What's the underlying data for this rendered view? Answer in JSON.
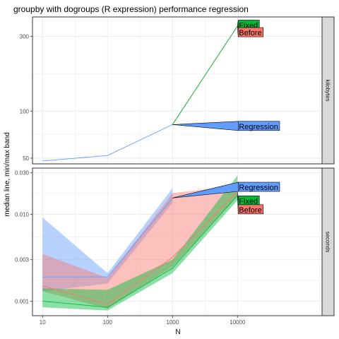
{
  "chart_data": {
    "type": "line",
    "title": "groupby with dogroups (R expression) performance regression",
    "xlabel": "N",
    "ylabel": "median line, min/max band",
    "x_scale": "log10",
    "xlim": [
      7,
      200000
    ],
    "x_ticks": [
      {
        "value": 10,
        "label": "10"
      },
      {
        "value": 100,
        "label": "100"
      },
      {
        "value": 1000,
        "label": "1000"
      },
      {
        "value": 10000,
        "label": "10000"
      }
    ],
    "colors": {
      "before": "#F8766D",
      "fixed": "#00BA38",
      "regression": "#619CFF",
      "panel_grid": "#ebebeb",
      "panel_border": "#333333",
      "strip_fill": "#d9d9d9"
    },
    "legend": "none",
    "panels": [
      {
        "strip": "kilobytes",
        "y_scale": "log10",
        "ylim": [
          46,
          400
        ],
        "y_ticks": [
          {
            "value": 50,
            "label": "50"
          },
          {
            "value": 100,
            "label": "100"
          },
          {
            "value": 300,
            "label": "300"
          }
        ],
        "series": [
          {
            "key": "regression",
            "x": [
              10,
              100,
              1000
            ],
            "median": [
              48,
              52,
              82
            ],
            "min": [
              48,
              52,
              82
            ],
            "max": [
              48,
              52,
              82
            ]
          },
          {
            "key": "before",
            "x": [
              1000,
              10000
            ],
            "median": [
              82,
              350
            ],
            "min": [
              82,
              350
            ],
            "max": [
              82,
              350
            ]
          },
          {
            "key": "fixed",
            "x": [
              1000,
              10000
            ],
            "median": [
              82,
              350
            ],
            "min": [
              82,
              350
            ],
            "max": [
              82,
              350
            ]
          }
        ],
        "annotations": [
          {
            "text": "Fixed",
            "key": "fixed",
            "x": 10000,
            "y": 350,
            "label_x": 10000,
            "label_y": 355
          },
          {
            "text": "Before",
            "key": "before",
            "x": 10000,
            "y": 350,
            "label_x": 10000,
            "label_y": 318
          },
          {
            "text": "Regression",
            "key": "regression",
            "x": 1000,
            "y": 82,
            "label_x": 10000,
            "label_y": 80
          }
        ]
      },
      {
        "strip": "seconds",
        "y_scale": "log10",
        "ylim": [
          0.00068,
          0.034
        ],
        "y_ticks": [
          {
            "value": 0.001,
            "label": "0.001"
          },
          {
            "value": 0.003,
            "label": "0.003"
          },
          {
            "value": 0.01,
            "label": "0.010"
          },
          {
            "value": 0.03,
            "label": "0.030"
          }
        ],
        "series": [
          {
            "key": "regression",
            "x": [
              10,
              100,
              1000
            ],
            "median": [
              0.0019,
              0.0019,
              0.0154
            ],
            "min": [
              0.0013,
              0.0016,
              0.0135
            ],
            "max": [
              0.0092,
              0.0021,
              0.02
            ]
          },
          {
            "key": "before",
            "x": [
              10,
              100,
              1000,
              10000
            ],
            "median": [
              0.0015,
              0.00092,
              0.0032,
              0.018
            ],
            "min": [
              0.0013,
              0.00082,
              0.0025,
              0.016
            ],
            "max": [
              0.0035,
              0.00185,
              0.0175,
              0.0215
            ]
          },
          {
            "key": "fixed",
            "x": [
              10,
              100,
              1000,
              10000
            ],
            "median": [
              0.001,
              0.00085,
              0.0024,
              0.0165
            ],
            "min": [
              0.00085,
              0.00078,
              0.0021,
              0.0145
            ],
            "max": [
              0.0014,
              0.00135,
              0.003,
              0.028
            ]
          }
        ],
        "annotations": [
          {
            "text": "Regression",
            "key": "regression",
            "x": 1000,
            "y": 0.0154,
            "label_x": 10000,
            "label_y": 0.0205
          },
          {
            "text": "Fixed",
            "key": "fixed",
            "x": 10000,
            "y": 0.0165,
            "label_x": 10000,
            "label_y": 0.0143
          },
          {
            "text": "Before",
            "key": "before",
            "x": 10000,
            "y": 0.018,
            "label_x": 10000,
            "label_y": 0.0113
          }
        ]
      }
    ]
  }
}
